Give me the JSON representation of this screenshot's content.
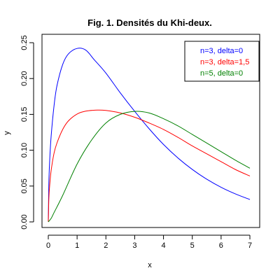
{
  "chart_data": {
    "type": "line",
    "title": "Fig. 1. Densités du Khi-deux.",
    "xlabel": "x",
    "ylabel": "y",
    "xlim": [
      0,
      7
    ],
    "ylim": [
      0,
      0.25
    ],
    "xticks": [
      "0",
      "1",
      "2",
      "3",
      "4",
      "5",
      "6",
      "7"
    ],
    "yticks": [
      "0.00",
      "0.05",
      "0.10",
      "0.15",
      "0.20",
      "0.25"
    ],
    "grid": false,
    "legend_position": "top-right",
    "series": [
      {
        "name": "n=3, delta=0",
        "color": "#0000ff",
        "x": [
          0,
          0.02,
          0.05,
          0.1,
          0.2,
          0.3,
          0.5,
          0.7,
          1.0,
          1.3,
          1.6,
          2.0,
          2.5,
          3.0,
          3.5,
          4.0,
          4.5,
          5.0,
          5.5,
          6.0,
          6.5,
          7.0
        ],
        "y": [
          0,
          0.0558,
          0.0873,
          0.1202,
          0.1623,
          0.1898,
          0.2197,
          0.2344,
          0.242,
          0.2397,
          0.226,
          0.2076,
          0.18,
          0.1542,
          0.13,
          0.108,
          0.0892,
          0.0732,
          0.0596,
          0.0483,
          0.039,
          0.0312
        ]
      },
      {
        "name": "n=3, delta=1,5",
        "color": "#ff0000",
        "x": [
          0,
          0.02,
          0.05,
          0.1,
          0.2,
          0.3,
          0.5,
          0.7,
          1.0,
          1.3,
          1.7,
          2.0,
          2.5,
          3.0,
          3.5,
          4.0,
          4.5,
          5.0,
          5.5,
          6.0,
          6.5,
          7.0
        ],
        "y": [
          0,
          0.033,
          0.052,
          0.072,
          0.096,
          0.11,
          0.129,
          0.141,
          0.1505,
          0.1545,
          0.156,
          0.1555,
          0.152,
          0.146,
          0.138,
          0.129,
          0.118,
          0.106,
          0.095,
          0.084,
          0.073,
          0.064
        ]
      },
      {
        "name": "n=5, delta=0",
        "color": "#008000",
        "x": [
          0,
          0.1,
          0.2,
          0.5,
          1.0,
          1.5,
          2.0,
          2.5,
          3.0,
          3.5,
          4.0,
          4.5,
          5.0,
          5.5,
          6.0,
          6.5,
          7.0
        ],
        "y": [
          0,
          0.005,
          0.013,
          0.037,
          0.0807,
          0.114,
          0.138,
          0.15,
          0.1542,
          0.152,
          0.144,
          0.134,
          0.122,
          0.11,
          0.098,
          0.086,
          0.0749
        ]
      }
    ]
  }
}
